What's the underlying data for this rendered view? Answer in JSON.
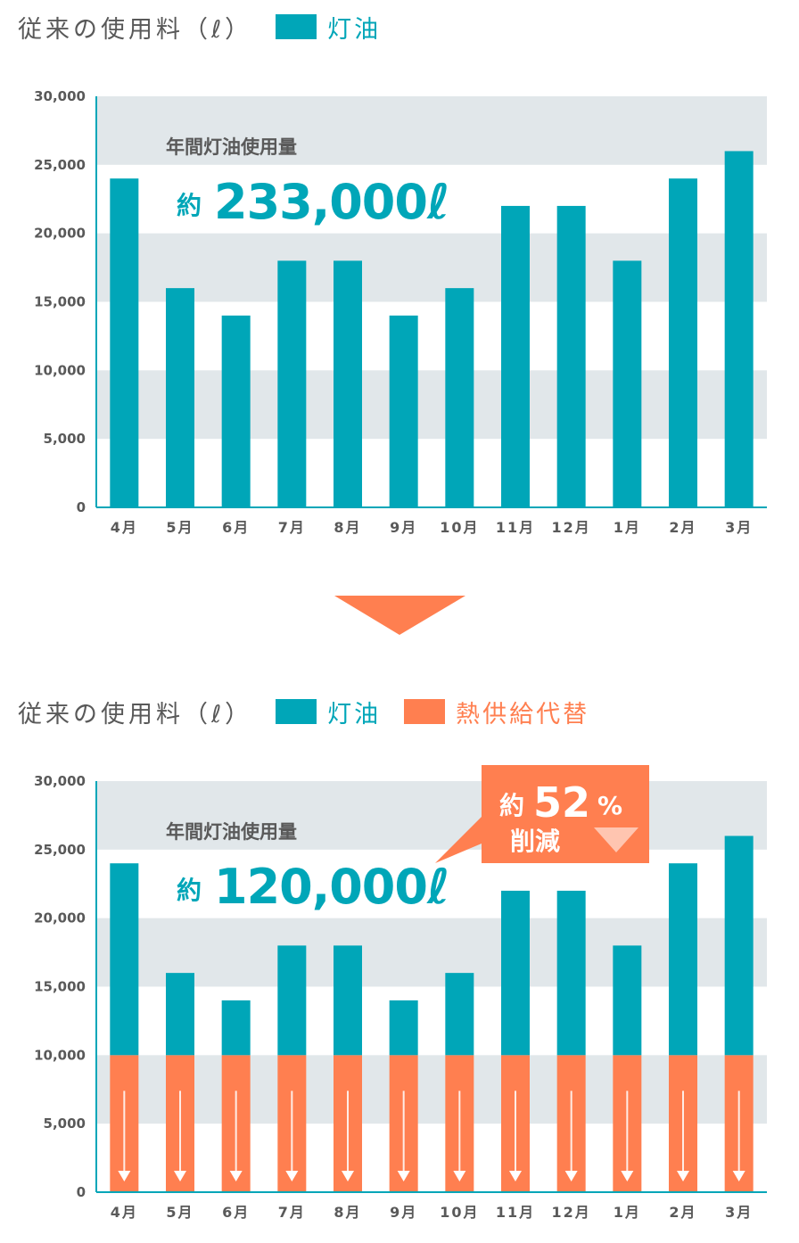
{
  "colors": {
    "kerosene": "#00a6b8",
    "heat": "#ff7f50",
    "band": "#e1e7ea",
    "axis": "#00a6b8",
    "text": "#595959",
    "arrow": "#ff7f50"
  },
  "chart1": {
    "legend_title": "従来の使用料（ℓ）",
    "legend_items": [
      "灯油"
    ],
    "annotation_title": "年間灯油使用量",
    "annotation_prefix": "約",
    "annotation_value": "233,000ℓ"
  },
  "chart2": {
    "legend_title": "従来の使用料（ℓ）",
    "legend_items": [
      "灯油",
      "熱供給代替"
    ],
    "annotation_title": "年間灯油使用量",
    "annotation_prefix": "約",
    "annotation_value": "120,000ℓ",
    "callout": {
      "prefix": "約",
      "value": "52",
      "unit": "%",
      "label": "削減"
    }
  },
  "chart_data": [
    {
      "type": "bar",
      "categories": [
        "4月",
        "5月",
        "6月",
        "7月",
        "8月",
        "9月",
        "10月",
        "11月",
        "12月",
        "1月",
        "2月",
        "3月"
      ],
      "series": [
        {
          "name": "灯油",
          "values": [
            24000,
            16000,
            14000,
            18000,
            18000,
            14000,
            16000,
            22000,
            22000,
            18000,
            24000,
            26000
          ]
        }
      ],
      "ylim": [
        0,
        30000
      ],
      "yticks": [
        "0",
        "5,000",
        "10,000",
        "15,000",
        "20,000",
        "25,000",
        "30,000"
      ],
      "grid": "alternating bands"
    },
    {
      "type": "bar",
      "stacked": true,
      "categories": [
        "4月",
        "5月",
        "6月",
        "7月",
        "8月",
        "9月",
        "10月",
        "11月",
        "12月",
        "1月",
        "2月",
        "3月"
      ],
      "series": [
        {
          "name": "熱供給代替",
          "values": [
            10000,
            10000,
            10000,
            10000,
            10000,
            10000,
            10000,
            10000,
            10000,
            10000,
            10000,
            10000
          ]
        },
        {
          "name": "灯油",
          "values": [
            14000,
            6000,
            4000,
            8000,
            8000,
            4000,
            6000,
            12000,
            12000,
            8000,
            14000,
            16000
          ]
        }
      ],
      "ylim": [
        0,
        30000
      ],
      "yticks": [
        "0",
        "5,000",
        "10,000",
        "15,000",
        "20,000",
        "25,000",
        "30,000"
      ],
      "grid": "alternating bands"
    }
  ]
}
